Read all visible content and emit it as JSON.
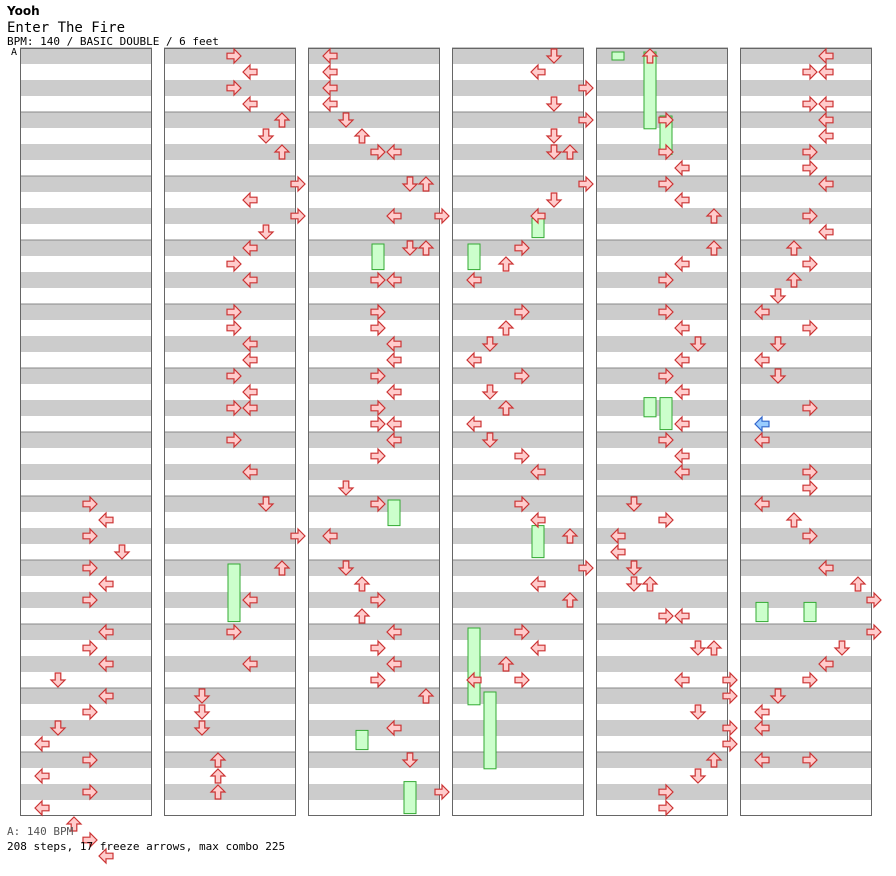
{
  "header": {
    "artist": "Yooh",
    "song_title": "Enter The Fire",
    "info": "BPM: 140 / BASIC DOUBLE / 6 feet",
    "bpm_marker": "A"
  },
  "footer": {
    "bpm_label": "A: 140 BPM",
    "stats": "208 steps, 17 freeze arrows, max combo 225"
  },
  "colors": {
    "stripe": "#cccccc",
    "arrow_fill": "#ffcccc",
    "arrow_stroke": "#cc3333",
    "freeze_fill": "#ccffcc",
    "freeze_stroke": "#33aa33",
    "special_fill": "#99ccff",
    "special_stroke": "#3366cc"
  },
  "lanes": [
    "left",
    "down",
    "up",
    "right"
  ],
  "chart_data": {
    "type": "step-chart",
    "mode": "double",
    "columns": 6,
    "measures_per_column": 12,
    "rows_per_measure": 16,
    "freezes": [
      {
        "col": 1,
        "lane": 3,
        "start": 8.0,
        "end": 8.9
      },
      {
        "col": 2,
        "lane": 2,
        "start": 10.6,
        "end": 10.9
      },
      {
        "col": 2,
        "lane": 3,
        "start": 3.0,
        "end": 3.4
      },
      {
        "col": 2,
        "lane": 4,
        "start": 7.0,
        "end": 7.4
      },
      {
        "col": 2,
        "lane": 5,
        "start": 11.4,
        "end": 11.9
      },
      {
        "col": 3,
        "lane": 0,
        "start": 3.0,
        "end": 3.4
      },
      {
        "col": 3,
        "lane": 4,
        "start": 2.6,
        "end": 2.9
      },
      {
        "col": 3,
        "lane": 4,
        "start": 7.4,
        "end": 7.9
      },
      {
        "col": 3,
        "lane": 0,
        "start": 9.0,
        "end": 10.2
      },
      {
        "col": 3,
        "lane": 1,
        "start": 10.0,
        "end": 11.2
      },
      {
        "col": 4,
        "lane": 0,
        "start": 0.0,
        "end": 0.1
      },
      {
        "col": 4,
        "lane": 2,
        "start": 0.0,
        "end": 1.2
      },
      {
        "col": 4,
        "lane": 3,
        "start": 1.0,
        "end": 1.6
      },
      {
        "col": 4,
        "lane": 2,
        "start": 5.4,
        "end": 5.7
      },
      {
        "col": 4,
        "lane": 3,
        "start": 5.4,
        "end": 5.9
      },
      {
        "col": 5,
        "lane": 0,
        "start": 8.6,
        "end": 8.9
      },
      {
        "col": 5,
        "lane": 3,
        "start": 8.6,
        "end": 8.9
      }
    ],
    "arrows": [
      [
        0,
        7.0,
        3
      ],
      [
        0,
        7.25,
        4
      ],
      [
        0,
        7.5,
        3
      ],
      [
        0,
        7.75,
        5
      ],
      [
        0,
        8.0,
        3
      ],
      [
        0,
        8.25,
        4
      ],
      [
        0,
        8.5,
        3
      ],
      [
        0,
        9.0,
        4
      ],
      [
        0,
        9.25,
        3
      ],
      [
        0,
        9.5,
        4
      ],
      [
        0,
        9.75,
        1
      ],
      [
        0,
        10.0,
        4
      ],
      [
        0,
        10.25,
        3
      ],
      [
        0,
        10.5,
        1
      ],
      [
        0,
        10.75,
        0
      ],
      [
        0,
        11.0,
        3
      ],
      [
        0,
        11.25,
        0
      ],
      [
        0,
        11.5,
        3
      ],
      [
        0,
        11.75,
        0
      ],
      [
        0,
        12.0,
        2
      ],
      [
        0,
        12.25,
        3
      ],
      [
        0,
        12.5,
        4
      ],
      [
        1,
        0.0,
        3
      ],
      [
        1,
        0.25,
        4
      ],
      [
        1,
        0.5,
        3
      ],
      [
        1,
        0.75,
        4
      ],
      [
        1,
        1.0,
        6
      ],
      [
        1,
        1.25,
        5
      ],
      [
        1,
        1.5,
        6
      ],
      [
        1,
        2.0,
        7
      ],
      [
        1,
        2.25,
        4
      ],
      [
        1,
        2.5,
        7
      ],
      [
        1,
        2.75,
        5
      ],
      [
        1,
        3.0,
        4
      ],
      [
        1,
        3.25,
        3
      ],
      [
        1,
        3.5,
        4
      ],
      [
        1,
        4.0,
        3
      ],
      [
        1,
        4.25,
        3
      ],
      [
        1,
        4.5,
        4
      ],
      [
        1,
        4.75,
        4
      ],
      [
        1,
        5.0,
        3
      ],
      [
        1,
        5.25,
        4
      ],
      [
        1,
        5.5,
        3
      ],
      [
        1,
        5.5,
        4
      ],
      [
        1,
        6.0,
        3
      ],
      [
        1,
        6.5,
        4
      ],
      [
        1,
        7.0,
        5
      ],
      [
        1,
        7.5,
        7
      ],
      [
        1,
        8.0,
        6
      ],
      [
        1,
        8.5,
        4
      ],
      [
        1,
        9.0,
        3
      ],
      [
        1,
        9.5,
        4
      ],
      [
        1,
        10.0,
        1
      ],
      [
        1,
        10.25,
        1
      ],
      [
        1,
        10.5,
        1
      ],
      [
        1,
        11.0,
        2
      ],
      [
        1,
        11.25,
        2
      ],
      [
        1,
        11.5,
        2
      ],
      [
        2,
        0.0,
        0
      ],
      [
        2,
        0.25,
        0
      ],
      [
        2,
        0.5,
        0
      ],
      [
        2,
        0.75,
        0
      ],
      [
        2,
        1.0,
        1
      ],
      [
        2,
        1.25,
        2
      ],
      [
        2,
        1.5,
        3
      ],
      [
        2,
        1.5,
        4
      ],
      [
        2,
        2.0,
        5
      ],
      [
        2,
        2.0,
        6
      ],
      [
        2,
        2.5,
        4
      ],
      [
        2,
        2.5,
        7
      ],
      [
        2,
        3.0,
        5
      ],
      [
        2,
        3.0,
        6
      ],
      [
        2,
        3.5,
        3
      ],
      [
        2,
        3.5,
        4
      ],
      [
        2,
        4.0,
        3
      ],
      [
        2,
        4.25,
        3
      ],
      [
        2,
        4.5,
        4
      ],
      [
        2,
        4.75,
        4
      ],
      [
        2,
        5.0,
        3
      ],
      [
        2,
        5.25,
        4
      ],
      [
        2,
        5.5,
        3
      ],
      [
        2,
        5.75,
        3
      ],
      [
        2,
        5.75,
        4
      ],
      [
        2,
        6.0,
        4
      ],
      [
        2,
        6.25,
        3
      ],
      [
        2,
        6.75,
        1
      ],
      [
        2,
        7.0,
        3
      ],
      [
        2,
        7.5,
        0
      ],
      [
        2,
        8.0,
        1
      ],
      [
        2,
        8.25,
        2
      ],
      [
        2,
        8.5,
        3
      ],
      [
        2,
        8.75,
        2
      ],
      [
        2,
        9.0,
        4
      ],
      [
        2,
        9.25,
        3
      ],
      [
        2,
        9.5,
        4
      ],
      [
        2,
        9.75,
        3
      ],
      [
        2,
        10.0,
        6
      ],
      [
        2,
        10.5,
        4
      ],
      [
        2,
        11.0,
        5
      ],
      [
        2,
        11.5,
        7
      ],
      [
        3,
        0.0,
        5
      ],
      [
        3,
        0.25,
        4
      ],
      [
        3,
        0.5,
        7
      ],
      [
        3,
        0.75,
        5
      ],
      [
        3,
        1.0,
        7
      ],
      [
        3,
        1.25,
        5
      ],
      [
        3,
        1.5,
        5
      ],
      [
        3,
        1.5,
        6
      ],
      [
        3,
        2.0,
        7
      ],
      [
        3,
        2.25,
        5
      ],
      [
        3,
        2.5,
        4
      ],
      [
        3,
        3.0,
        3
      ],
      [
        3,
        3.25,
        2
      ],
      [
        3,
        3.5,
        0
      ],
      [
        3,
        4.0,
        3
      ],
      [
        3,
        4.25,
        2
      ],
      [
        3,
        4.5,
        1
      ],
      [
        3,
        4.75,
        0
      ],
      [
        3,
        5.0,
        3
      ],
      [
        3,
        5.25,
        1
      ],
      [
        3,
        5.5,
        2
      ],
      [
        3,
        5.75,
        0
      ],
      [
        3,
        6.0,
        1
      ],
      [
        3,
        6.25,
        3
      ],
      [
        3,
        6.5,
        4
      ],
      [
        3,
        7.0,
        3
      ],
      [
        3,
        7.25,
        4
      ],
      [
        3,
        7.5,
        6
      ],
      [
        3,
        8.0,
        7
      ],
      [
        3,
        8.25,
        4
      ],
      [
        3,
        8.5,
        6
      ],
      [
        3,
        9.0,
        3
      ],
      [
        3,
        9.25,
        4
      ],
      [
        3,
        9.5,
        2
      ],
      [
        3,
        9.75,
        0
      ],
      [
        3,
        9.75,
        3
      ],
      [
        4,
        0.0,
        2
      ],
      [
        4,
        1.0,
        3
      ],
      [
        4,
        1.5,
        3
      ],
      [
        4,
        1.75,
        4
      ],
      [
        4,
        2.0,
        3
      ],
      [
        4,
        2.25,
        4
      ],
      [
        4,
        2.5,
        6
      ],
      [
        4,
        3.0,
        6
      ],
      [
        4,
        3.25,
        4
      ],
      [
        4,
        3.5,
        3
      ],
      [
        4,
        4.0,
        3
      ],
      [
        4,
        4.25,
        4
      ],
      [
        4,
        4.5,
        5
      ],
      [
        4,
        4.75,
        4
      ],
      [
        4,
        5.0,
        3
      ],
      [
        4,
        5.25,
        4
      ],
      [
        4,
        5.75,
        4
      ],
      [
        4,
        6.0,
        3
      ],
      [
        4,
        6.25,
        4
      ],
      [
        4,
        6.5,
        4
      ],
      [
        4,
        7.0,
        1
      ],
      [
        4,
        7.25,
        3
      ],
      [
        4,
        7.5,
        0
      ],
      [
        4,
        7.75,
        0
      ],
      [
        4,
        8.0,
        1
      ],
      [
        4,
        8.25,
        1
      ],
      [
        4,
        8.25,
        2
      ],
      [
        4,
        8.75,
        3
      ],
      [
        4,
        8.75,
        4
      ],
      [
        4,
        9.25,
        5
      ],
      [
        4,
        9.25,
        6
      ],
      [
        4,
        9.75,
        4
      ],
      [
        4,
        9.75,
        7
      ],
      [
        4,
        10.0,
        7
      ],
      [
        4,
        10.25,
        5
      ],
      [
        4,
        10.5,
        7
      ],
      [
        4,
        10.75,
        7
      ],
      [
        4,
        11.0,
        6
      ],
      [
        4,
        11.25,
        5
      ],
      [
        4,
        11.5,
        3
      ],
      [
        4,
        11.75,
        3
      ],
      [
        5,
        0.0,
        4
      ],
      [
        5,
        0.25,
        3
      ],
      [
        5,
        0.25,
        4
      ],
      [
        5,
        0.75,
        3
      ],
      [
        5,
        0.75,
        4
      ],
      [
        5,
        1.0,
        4
      ],
      [
        5,
        1.25,
        4
      ],
      [
        5,
        1.5,
        3
      ],
      [
        5,
        1.75,
        3
      ],
      [
        5,
        2.0,
        4
      ],
      [
        5,
        2.5,
        3
      ],
      [
        5,
        2.75,
        4
      ],
      [
        5,
        3.0,
        2
      ],
      [
        5,
        3.25,
        3
      ],
      [
        5,
        3.5,
        2
      ],
      [
        5,
        3.75,
        1
      ],
      [
        5,
        4.0,
        0
      ],
      [
        5,
        4.25,
        3
      ],
      [
        5,
        4.5,
        1
      ],
      [
        5,
        4.75,
        0
      ],
      [
        5,
        5.0,
        1
      ],
      [
        5,
        5.5,
        3
      ],
      [
        5,
        6.0,
        0
      ],
      [
        5,
        6.5,
        3
      ],
      [
        5,
        6.75,
        3
      ],
      [
        5,
        7.0,
        0
      ],
      [
        5,
        7.25,
        2
      ],
      [
        5,
        7.5,
        3
      ],
      [
        5,
        8.0,
        4
      ],
      [
        5,
        8.25,
        6
      ],
      [
        5,
        8.5,
        7
      ],
      [
        5,
        9.0,
        7
      ],
      [
        5,
        9.25,
        5
      ],
      [
        5,
        9.5,
        4
      ],
      [
        5,
        9.75,
        3
      ],
      [
        5,
        10.0,
        1
      ],
      [
        5,
        10.25,
        0
      ],
      [
        5,
        10.5,
        0
      ],
      [
        5,
        11.0,
        0
      ],
      [
        5,
        11.0,
        3
      ]
    ],
    "special_arrows": [
      [
        5,
        5.75,
        0
      ]
    ]
  }
}
